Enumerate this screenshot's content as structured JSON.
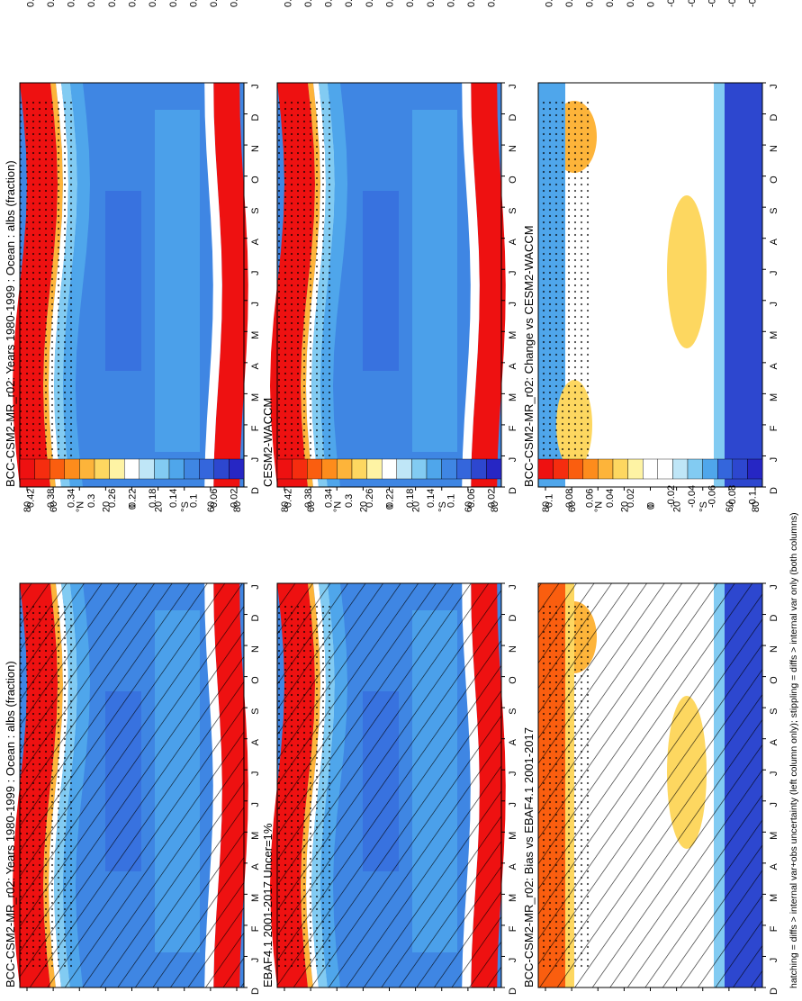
{
  "footnote": "hatching = diffs > internal var+obs uncertainty (left column only); stippling = diffs > internal var only (both columns)",
  "month_ticks": [
    "D",
    "J",
    "F",
    "M",
    "A",
    "M",
    "J",
    "J",
    "A",
    "S",
    "O",
    "N",
    "D",
    "J"
  ],
  "lat_ticks": [
    "80",
    "60",
    "°N",
    "20",
    "0",
    "20",
    "°S",
    "60",
    "80"
  ],
  "colors": {
    "abs_scale": [
      "#ee1111",
      "#f52d0f",
      "#fa5e0f",
      "#fd8c1c",
      "#fdb43a",
      "#fdd760",
      "#fef3a4",
      "#ffffff",
      "#bfe6f7",
      "#82cbf2",
      "#4fa6eb",
      "#3f86e3",
      "#3466dc",
      "#2d47cf",
      "#2626c4"
    ],
    "diff_scale": [
      "#ee1111",
      "#f52d0f",
      "#fa5e0f",
      "#fd8c1c",
      "#fdb43a",
      "#fdd760",
      "#fef3a4",
      "#ffffff",
      "#ffffff",
      "#bfe6f7",
      "#82cbf2",
      "#4fa6eb",
      "#3466dc",
      "#2d47cf",
      "#2626c4"
    ]
  },
  "chart_data": [
    {
      "type": "heatmap",
      "title": "BCC-CSM2-MR_r02: Years 1980-1999 : Ocean : albs (fraction)",
      "colorbar_labels": [
        "0.42",
        "0.38",
        "0.34",
        "0.3",
        "0.26",
        "0.22",
        "0.18",
        "0.14",
        "0.1",
        "0.06",
        "0.02"
      ],
      "hatching": true,
      "stippling": true
    },
    {
      "type": "heatmap",
      "title": "EBAF4.1 2001-2017 Uncer=1%",
      "colorbar_labels": [
        "0.42",
        "0.38",
        "0.34",
        "0.3",
        "0.26",
        "0.22",
        "0.18",
        "0.14",
        "0.1",
        "0.06",
        "0.02"
      ],
      "hatching": true,
      "stippling": true
    },
    {
      "type": "heatmap",
      "title": "BCC-CSM2-MR_r02: Bias vs EBAF4.1 2001-2017",
      "colorbar_labels": [
        "0.1",
        "0.08",
        "0.06",
        "0.04",
        "0.02",
        "0",
        "-0.02",
        "-0.04",
        "-0.06",
        "-0.08",
        "-0.1"
      ],
      "hatching": true,
      "stippling": true
    },
    {
      "type": "heatmap",
      "title": "BCC-CSM2-MR_r02: Years 1980-1999 : Ocean : albs (fraction)",
      "colorbar_labels": [
        "0.42",
        "0.38",
        "0.34",
        "0.3",
        "0.26",
        "0.22",
        "0.18",
        "0.14",
        "0.1",
        "0.06",
        "0.02"
      ],
      "hatching": false,
      "stippling": true
    },
    {
      "type": "heatmap",
      "title": "CESM2-WACCM",
      "colorbar_labels": [
        "0.42",
        "0.38",
        "0.34",
        "0.3",
        "0.26",
        "0.22",
        "0.18",
        "0.14",
        "0.1",
        "0.06",
        "0.02"
      ],
      "hatching": false,
      "stippling": true
    },
    {
      "type": "heatmap",
      "title": "BCC-CSM2-MR_r02: Change vs CESM2-WACCM",
      "colorbar_labels": [
        "0.1",
        "0.08",
        "0.06",
        "0.04",
        "0.02",
        "0",
        "-0.02",
        "-0.04",
        "-0.06",
        "-0.08",
        "-0.1"
      ],
      "hatching": false,
      "stippling": true
    }
  ]
}
